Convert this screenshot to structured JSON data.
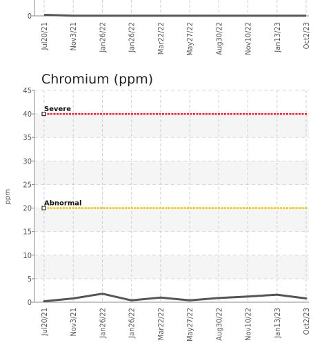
{
  "chart_data": [
    {
      "type": "line",
      "title": "",
      "ylabel": "",
      "x": [
        "Jul20/21",
        "Nov3/21",
        "Jan26/22",
        "Jan26/22",
        "Mar22/22",
        "May27/22",
        "Aug30/22",
        "Nov10/22",
        "Jan13/23",
        "Oct2/23"
      ],
      "series": [
        {
          "values": [
            0.5,
            0.1,
            0.1,
            0.1,
            0.1,
            0.1,
            0.1,
            0.1,
            0.1,
            0.1
          ]
        }
      ],
      "y_ticks": [
        0
      ]
    },
    {
      "type": "line",
      "title": "Chromium (ppm)",
      "ylabel": "ppm",
      "ylim": [
        0,
        45
      ],
      "y_ticks": [
        0,
        5,
        10,
        15,
        20,
        25,
        30,
        35,
        40,
        45
      ],
      "x": [
        "Jul20/21",
        "Nov3/21",
        "Jan26/22",
        "Jan26/22",
        "Mar22/22",
        "May27/22",
        "Aug30/22",
        "Nov10/22",
        "Jan13/23",
        "Oct2/23"
      ],
      "series": [
        {
          "values": [
            0.2,
            0.8,
            1.8,
            0.4,
            1.0,
            0.4,
            0.9,
            1.2,
            1.6,
            0.8
          ]
        }
      ],
      "thresholds": [
        {
          "label": "Severe",
          "value": 40,
          "color": "#e8202a"
        },
        {
          "label": "Abnormal",
          "value": 20,
          "color": "#f2c200"
        }
      ],
      "grid": true
    }
  ]
}
